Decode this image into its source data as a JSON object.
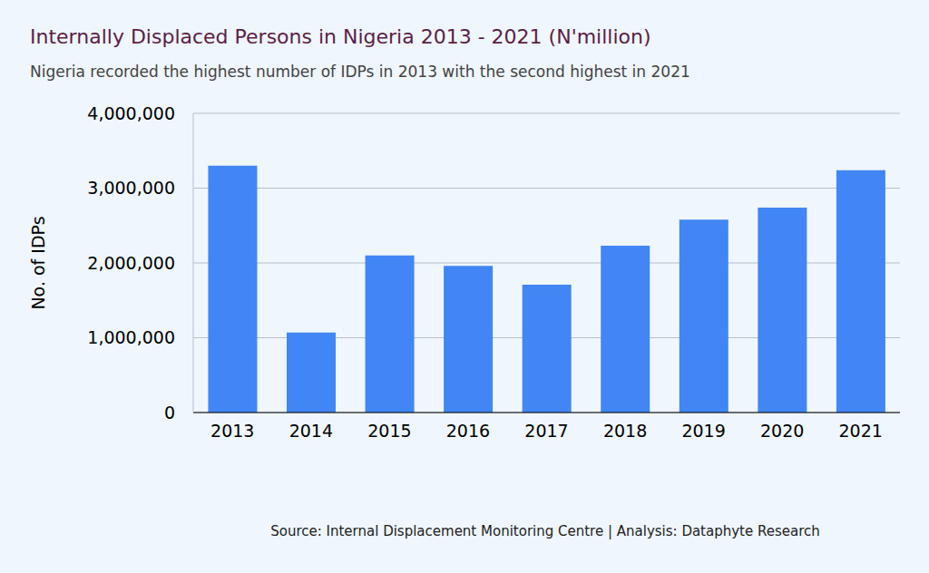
{
  "chart_data": {
    "type": "bar",
    "title": "Internally Displaced Persons in Nigeria 2013 - 2021 (N'million)",
    "subtitle": "Nigeria recorded the highest number of IDPs in 2013 with the second highest in 2021",
    "y_label": "No. of IDPs",
    "source": "Source: Internal Displacement Monitoring Centre | Analysis: Dataphyte Research",
    "categories": [
      "2013",
      "2014",
      "2015",
      "2016",
      "2017",
      "2018",
      "2019",
      "2020",
      "2021"
    ],
    "values": [
      3300000,
      1070000,
      2100000,
      1960000,
      1710000,
      2230000,
      2580000,
      2740000,
      3240000
    ],
    "color": "#4285f4",
    "ylim": [
      0,
      4000000
    ],
    "yticks": [
      0,
      {
        "value": 1000000,
        "label": "1,000,000"
      },
      {
        "value": 2000000,
        "label": "2,000,000"
      },
      {
        "value": 3000000,
        "label": "3,000,000"
      },
      {
        "value": 4000000,
        "label": "4,000,000"
      }
    ],
    "grid": true
  }
}
